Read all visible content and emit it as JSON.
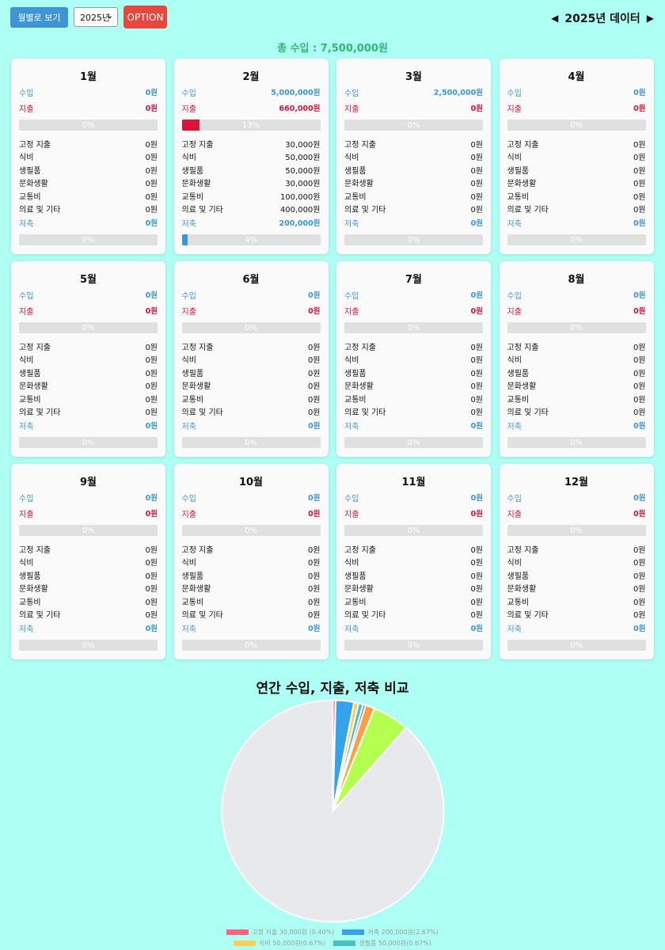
{
  "toolbar": {
    "monthly_view_label": "월별로 보기",
    "year_select_value": "2025년",
    "option_label": "OPTION",
    "year_title": "2025년 데이터"
  },
  "summary": {
    "total_income": "총 수입 : 7,500,000원"
  },
  "labels": {
    "income": "수입",
    "expense": "지출",
    "saving": "저축",
    "categories": [
      "고정 지출",
      "식비",
      "생필품",
      "문화생활",
      "교통비",
      "의료 및 기타"
    ]
  },
  "months": [
    {
      "title": "1월",
      "income": "0원",
      "expense": "0원",
      "expense_pct": 0,
      "expense_pct_label": "0%",
      "cats": [
        "0원",
        "0원",
        "0원",
        "0원",
        "0원",
        "0원"
      ],
      "saving": "0원",
      "saving_pct": 0,
      "saving_pct_label": "0%"
    },
    {
      "title": "2월",
      "income": "5,000,000원",
      "expense": "660,000원",
      "expense_pct": 13,
      "expense_pct_label": "13%",
      "cats": [
        "30,000원",
        "50,000원",
        "50,000원",
        "30,000원",
        "100,000원",
        "400,000원"
      ],
      "saving": "200,000원",
      "saving_pct": 4,
      "saving_pct_label": "4%"
    },
    {
      "title": "3월",
      "income": "2,500,000원",
      "expense": "0원",
      "expense_pct": 0,
      "expense_pct_label": "0%",
      "cats": [
        "0원",
        "0원",
        "0원",
        "0원",
        "0원",
        "0원"
      ],
      "saving": "0원",
      "saving_pct": 0,
      "saving_pct_label": "0%"
    },
    {
      "title": "4월",
      "income": "0원",
      "expense": "0원",
      "expense_pct": 0,
      "expense_pct_label": "0%",
      "cats": [
        "0원",
        "0원",
        "0원",
        "0원",
        "0원",
        "0원"
      ],
      "saving": "0원",
      "saving_pct": 0,
      "saving_pct_label": "0%"
    },
    {
      "title": "5월",
      "income": "0원",
      "expense": "0원",
      "expense_pct": 0,
      "expense_pct_label": "0%",
      "cats": [
        "0원",
        "0원",
        "0원",
        "0원",
        "0원",
        "0원"
      ],
      "saving": "0원",
      "saving_pct": 0,
      "saving_pct_label": "0%"
    },
    {
      "title": "6월",
      "income": "0원",
      "expense": "0원",
      "expense_pct": 0,
      "expense_pct_label": "0%",
      "cats": [
        "0원",
        "0원",
        "0원",
        "0원",
        "0원",
        "0원"
      ],
      "saving": "0원",
      "saving_pct": 0,
      "saving_pct_label": "0%"
    },
    {
      "title": "7월",
      "income": "0원",
      "expense": "0원",
      "expense_pct": 0,
      "expense_pct_label": "0%",
      "cats": [
        "0원",
        "0원",
        "0원",
        "0원",
        "0원",
        "0원"
      ],
      "saving": "0원",
      "saving_pct": 0,
      "saving_pct_label": "0%"
    },
    {
      "title": "8월",
      "income": "0원",
      "expense": "0원",
      "expense_pct": 0,
      "expense_pct_label": "0%",
      "cats": [
        "0원",
        "0원",
        "0원",
        "0원",
        "0원",
        "0원"
      ],
      "saving": "0원",
      "saving_pct": 0,
      "saving_pct_label": "0%"
    },
    {
      "title": "9월",
      "income": "0원",
      "expense": "0원",
      "expense_pct": 0,
      "expense_pct_label": "0%",
      "cats": [
        "0원",
        "0원",
        "0원",
        "0원",
        "0원",
        "0원"
      ],
      "saving": "0원",
      "saving_pct": 0,
      "saving_pct_label": "0%"
    },
    {
      "title": "10월",
      "income": "0원",
      "expense": "0원",
      "expense_pct": 0,
      "expense_pct_label": "0%",
      "cats": [
        "0원",
        "0원",
        "0원",
        "0원",
        "0원",
        "0원"
      ],
      "saving": "0원",
      "saving_pct": 0,
      "saving_pct_label": "0%"
    },
    {
      "title": "11월",
      "income": "0원",
      "expense": "0원",
      "expense_pct": 0,
      "expense_pct_label": "0%",
      "cats": [
        "0원",
        "0원",
        "0원",
        "0원",
        "0원",
        "0원"
      ],
      "saving": "0원",
      "saving_pct": 0,
      "saving_pct_label": "0%"
    },
    {
      "title": "12월",
      "income": "0원",
      "expense": "0원",
      "expense_pct": 0,
      "expense_pct_label": "0%",
      "cats": [
        "0원",
        "0원",
        "0원",
        "0원",
        "0원",
        "0원"
      ],
      "saving": "0원",
      "saving_pct": 0,
      "saving_pct_label": "0%"
    }
  ],
  "colors": {
    "background": "#aefff4",
    "income": "#3d95d8",
    "expense": "#dc143c",
    "total_income": "#2eb872",
    "option_button": "#e8473e"
  },
  "icons": {
    "prev": "triangle-left-icon",
    "next": "triangle-right-icon",
    "select": "chevron-down-icon"
  },
  "chart_data": {
    "type": "pie",
    "title": "연간 수입, 지출, 저축 비교",
    "slices": [
      {
        "label": "고정 지출 30,000원 (0.40%)",
        "value": 30000,
        "color": "#ff6384"
      },
      {
        "label": "저축 200,000원(2.67%)",
        "value": 200000,
        "color": "#36a2eb"
      },
      {
        "label": "식비 50,000원(0.67%)",
        "value": 50000,
        "color": "#ffce56"
      },
      {
        "label": "생필품 50,000원(0.67%)",
        "value": 50000,
        "color": "#4bc0c0"
      },
      {
        "label": "",
        "value": 30000,
        "color": "#9966ff"
      },
      {
        "label": "",
        "value": 100000,
        "color": "#ff9f40"
      },
      {
        "label": "",
        "value": 400000,
        "color": "#b5ff50"
      },
      {
        "label": "",
        "value": 6640000,
        "color": "#e8e9ed"
      }
    ],
    "legend_position": "bottom"
  }
}
